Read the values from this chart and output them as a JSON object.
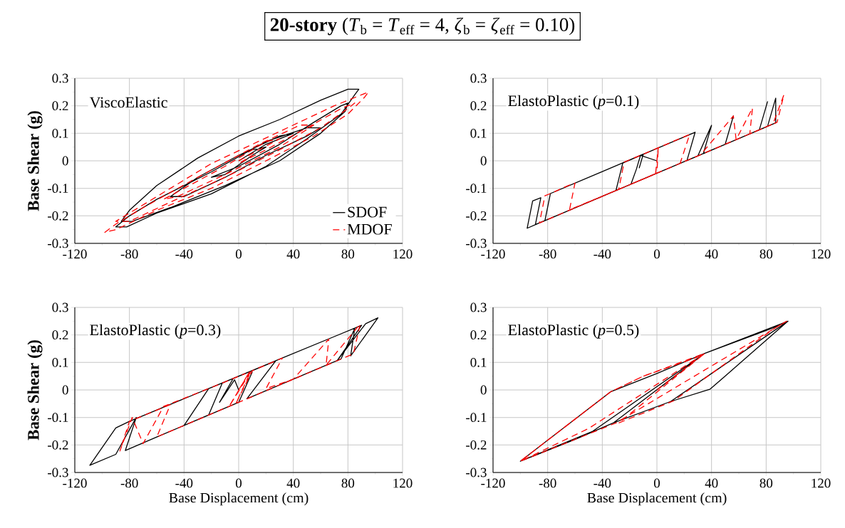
{
  "chart_data": [
    {
      "type": "line",
      "title": "**20-story** (*T*$_{b}$ = *T*$_{eff}$ = 4, *ζ*$_{b}$ = *ζ*$_{eff}$ = 0.10)",
      "ylabel": "Base Shear (g)",
      "annotations": [
        "ViscoElastic"
      ],
      "xlim": [
        -120,
        120
      ],
      "ylim": [
        -0.3,
        0.3
      ],
      "xticks": [
        -120,
        -80,
        -40,
        0,
        40,
        80,
        120
      ],
      "yticks": [
        -0.3,
        -0.2,
        -0.1,
        0,
        0.1,
        0.2,
        0.3
      ],
      "grid": true,
      "legend": "bottom right",
      "series": [
        {
          "name": "SDOF",
          "color": "#000000",
          "line_style": "solid",
          "x": [
            0,
            20,
            40,
            30,
            0,
            -30,
            -50,
            -40,
            -10,
            20,
            50,
            60,
            50,
            20,
            -20,
            -60,
            -80,
            -90,
            -82,
            -60,
            -20,
            20,
            50,
            75,
            85,
            88,
            80,
            60,
            30,
            0,
            -30,
            -60,
            -80,
            -86,
            -78,
            -50,
            -10,
            30,
            60,
            78,
            80,
            75,
            55,
            30,
            0,
            -20,
            -10,
            10,
            20,
            10
          ],
          "values": [
            0,
            0.06,
            0.1,
            0.09,
            0.02,
            -0.06,
            -0.13,
            -0.13,
            -0.06,
            0.02,
            0.09,
            0.12,
            0.12,
            0.07,
            -0.04,
            -0.14,
            -0.2,
            -0.24,
            -0.24,
            -0.19,
            -0.12,
            -0.02,
            0.08,
            0.17,
            0.24,
            0.26,
            0.26,
            0.22,
            0.15,
            0.09,
            0.01,
            -0.09,
            -0.18,
            -0.22,
            -0.22,
            -0.17,
            -0.09,
            0,
            0.1,
            0.18,
            0.21,
            0.2,
            0.14,
            0.06,
            -0.02,
            -0.06,
            -0.05,
            0.02,
            0.05,
            0.04
          ]
        },
        {
          "name": "MDOF",
          "color": "#ff0000",
          "line_style": "dashed",
          "x": [
            0,
            15,
            30,
            20,
            -10,
            -40,
            -55,
            -45,
            -10,
            30,
            55,
            45,
            15,
            -30,
            -70,
            -90,
            -98,
            -90,
            -60,
            -20,
            20,
            55,
            80,
            92,
            95,
            90,
            70,
            40,
            10,
            -20,
            -50,
            -80,
            -90,
            -80,
            -50,
            -10,
            30,
            60,
            80,
            85,
            75,
            50,
            20,
            0,
            10
          ],
          "values": [
            0,
            0.04,
            0.08,
            0.07,
            -0.02,
            -0.1,
            -0.14,
            -0.13,
            -0.05,
            0.05,
            0.13,
            0.13,
            0.06,
            -0.06,
            -0.17,
            -0.23,
            -0.26,
            -0.25,
            -0.18,
            -0.1,
            0,
            0.09,
            0.17,
            0.23,
            0.25,
            0.24,
            0.2,
            0.13,
            0.06,
            -0.01,
            -0.1,
            -0.19,
            -0.22,
            -0.22,
            -0.15,
            -0.06,
            0.04,
            0.12,
            0.19,
            0.21,
            0.19,
            0.12,
            0.04,
            -0.01,
            0.02
          ]
        }
      ]
    },
    {
      "type": "line",
      "annotations": [
        "ElastoPlastic (*p*=0.1)"
      ],
      "xlim": [
        -120,
        120
      ],
      "ylim": [
        -0.3,
        0.3
      ],
      "xticks": [
        -120,
        -80,
        -40,
        0,
        40,
        80,
        120
      ],
      "yticks": [
        -0.3,
        -0.2,
        -0.1,
        0,
        0.1,
        0.2,
        0.3
      ],
      "grid": true,
      "series": [
        {
          "color": "#000000",
          "line_style": "solid",
          "x": [
            0,
            -12,
            -15,
            -19,
            -30,
            -25,
            0,
            28,
            22,
            30,
            40,
            34,
            50,
            56,
            50,
            75,
            81,
            75,
            87,
            87,
            81,
            40,
            0,
            -40,
            -88,
            -95,
            -91,
            -85,
            -89,
            -82,
            -78,
            -40,
            -10,
            -13
          ],
          "values": [
            0,
            0.02,
            -0.03,
            -0.085,
            -0.108,
            -0.008,
            0.045,
            0.104,
            0.001,
            0.018,
            0.129,
            0.026,
            0.06,
            0.163,
            0.06,
            0.113,
            0.215,
            0.113,
            0.138,
            0.228,
            0.125,
            0.039,
            -0.045,
            -0.129,
            -0.23,
            -0.245,
            -0.146,
            -0.134,
            -0.232,
            -0.217,
            -0.119,
            -0.039,
            0.024,
            -0.027
          ]
        },
        {
          "color": "#ff0000",
          "line_style": "dashed",
          "x": [
            0,
            1,
            -1,
            -28,
            -24,
            -2,
            24,
            17,
            32,
            56,
            58,
            70,
            68,
            85,
            93,
            88,
            40,
            0,
            -60,
            -86,
            -82,
            -78,
            -65,
            -60,
            -64,
            -40,
            0,
            1
          ],
          "values": [
            0,
            0.047,
            -0.047,
            -0.104,
            -0.005,
            0.041,
            0.096,
            -0.009,
            0.022,
            0.163,
            0.077,
            0.192,
            0.098,
            0.134,
            0.24,
            0.14,
            0.039,
            -0.045,
            -0.171,
            -0.226,
            -0.127,
            -0.119,
            -0.09,
            -0.081,
            -0.178,
            -0.129,
            -0.045,
            0.047
          ]
        }
      ]
    },
    {
      "type": "line",
      "xlabel": "Base Displacement (cm)",
      "ylabel": "Base Shear (g)",
      "annotations": [
        "ElastoPlastic (*p*=0.3)"
      ],
      "xlim": [
        -120,
        120
      ],
      "ylim": [
        -0.3,
        0.3
      ],
      "xticks": [
        -120,
        -80,
        -40,
        0,
        40,
        80,
        120
      ],
      "yticks": [
        -0.3,
        -0.2,
        -0.1,
        0,
        0.1,
        0.2,
        0.3
      ],
      "grid": true,
      "series": [
        {
          "color": "#000000",
          "line_style": "solid",
          "x": [
            0,
            -3,
            -14,
            -4,
            -12,
            -22,
            -40,
            -22,
            27,
            6,
            27,
            75,
            85,
            82,
            102,
            93,
            72,
            90,
            70,
            30,
            -80,
            -90,
            -109,
            -90,
            -75,
            -83,
            -60,
            -40,
            0,
            10
          ],
          "values": [
            0,
            0.037,
            -0.045,
            0.042,
            0.025,
            -0.091,
            -0.129,
            0.005,
            0.105,
            -0.032,
            0.012,
            0.113,
            0.224,
            0.124,
            0.262,
            0.241,
            0.106,
            0.235,
            0.194,
            0.112,
            -0.114,
            -0.138,
            -0.274,
            -0.234,
            -0.1,
            -0.22,
            -0.171,
            -0.129,
            -0.045,
            0.066
          ]
        },
        {
          "color": "#ff0000",
          "line_style": "dashed",
          "x": [
            0,
            8,
            -7,
            9,
            -2,
            10,
            32,
            20,
            40,
            66,
            64,
            89,
            84,
            40,
            0,
            -20,
            -60,
            -50,
            -80,
            -87,
            -78,
            -70,
            -55,
            -20,
            5
          ],
          "values": [
            0,
            0.066,
            -0.06,
            0.068,
            -0.049,
            0.07,
            0.116,
            0.005,
            0.039,
            0.185,
            0.09,
            0.24,
            0.131,
            0.039,
            -0.045,
            -0.087,
            -0.171,
            -0.053,
            -0.114,
            -0.222,
            -0.1,
            -0.195,
            -0.06,
            0.009,
            0.06
          ]
        }
      ]
    },
    {
      "type": "line",
      "xlabel": "Base Displacement (cm)",
      "annotations": [
        "ElastoPlastic (*p*=0.5)"
      ],
      "xlim": [
        -120,
        120
      ],
      "ylim": [
        -0.3,
        0.3
      ],
      "xticks": [
        -120,
        -80,
        -40,
        0,
        40,
        80,
        120
      ],
      "yticks": [
        -0.3,
        -0.2,
        -0.1,
        0,
        0.1,
        0.2,
        0.3
      ],
      "grid": true,
      "series": [
        {
          "color": "#000000",
          "line_style": "solid",
          "x": [
            0,
            35,
            -32,
            10,
            39,
            96,
            10,
            -32,
            -60,
            -100,
            -34,
            0,
            35,
            85,
            96,
            35,
            -47,
            -100,
            -34,
            0,
            35
          ],
          "values": [
            0,
            0.133,
            -0.12,
            -0.042,
            0.003,
            0.25,
            -0.042,
            -0.12,
            -0.18,
            -0.259,
            -0.007,
            0.06,
            0.133,
            0.225,
            0.25,
            0.133,
            -0.15,
            -0.259,
            -0.007,
            0.06,
            0.133
          ]
        },
        {
          "color": "#ff0000",
          "line_style": "dashed",
          "x": [
            0,
            35,
            -28,
            12,
            85,
            95,
            -30,
            -100,
            -34,
            -10,
            35,
            -50,
            -100,
            -34,
            -10,
            30
          ],
          "values": [
            0,
            0.133,
            -0.12,
            -0.04,
            0.22,
            0.25,
            -0.12,
            -0.259,
            -0.007,
            0.05,
            0.133,
            -0.14,
            -0.259,
            -0.007,
            0.05,
            0.12
          ]
        }
      ]
    }
  ]
}
